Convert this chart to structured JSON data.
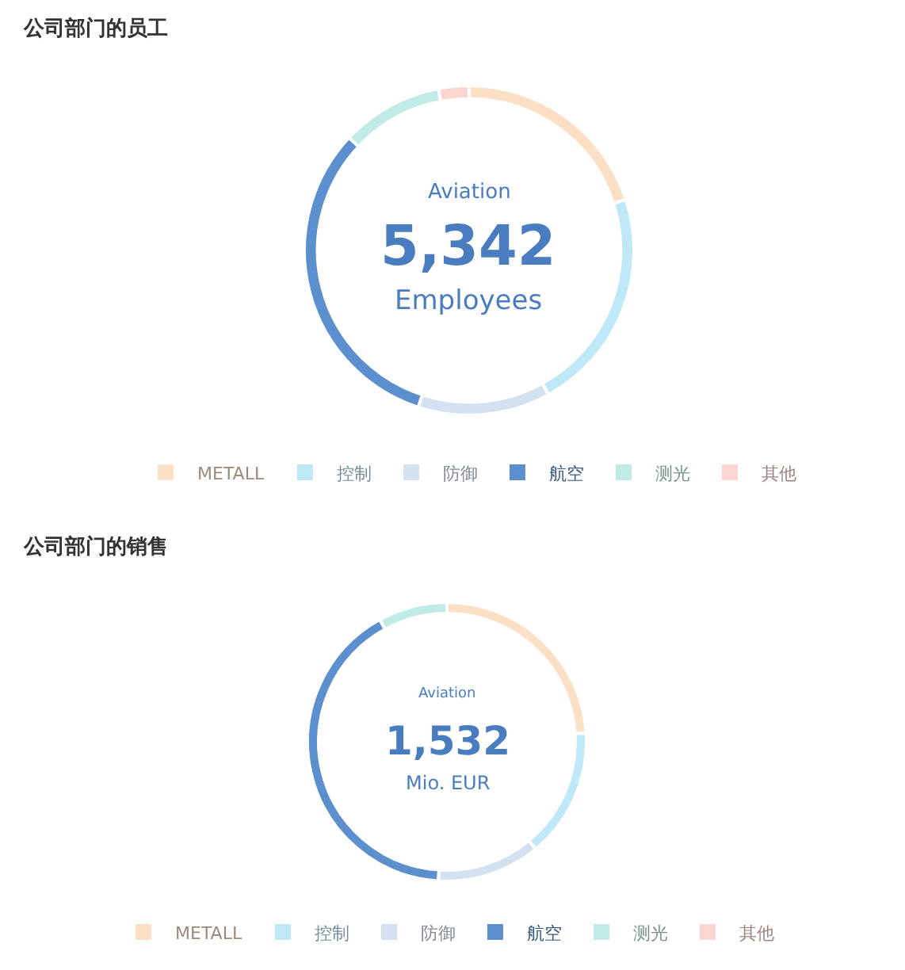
{
  "chart_data": [
    {
      "type": "donut",
      "title": "公司部门的员工",
      "categories": [
        "METALL",
        "控制",
        "防御",
        "航空",
        "测光",
        "其他"
      ],
      "values": [
        20,
        22,
        13,
        32,
        10,
        3
      ],
      "colors": [
        "#fce0c6",
        "#bfe8f9",
        "#d4e1f0",
        "#5b8fcd",
        "#c0ebe7",
        "#fcd4d0"
      ],
      "legend": "bottom",
      "annotations": [
        "Aviation",
        "5,342",
        "Employees"
      ]
    },
    {
      "type": "donut",
      "title": "公司部门的销售",
      "categories": [
        "METALL",
        "控制",
        "防御",
        "航空",
        "测光",
        "其他"
      ],
      "values": [
        24,
        15,
        12,
        41,
        8,
        0
      ],
      "colors": [
        "#fce0c6",
        "#bfe8f9",
        "#d4e1f0",
        "#5b8fcd",
        "#c0ebe7",
        "#fcd4d0"
      ],
      "legend": "bottom",
      "annotations": [
        "Aviation",
        "1,532",
        "Mio. EUR"
      ]
    }
  ]
}
